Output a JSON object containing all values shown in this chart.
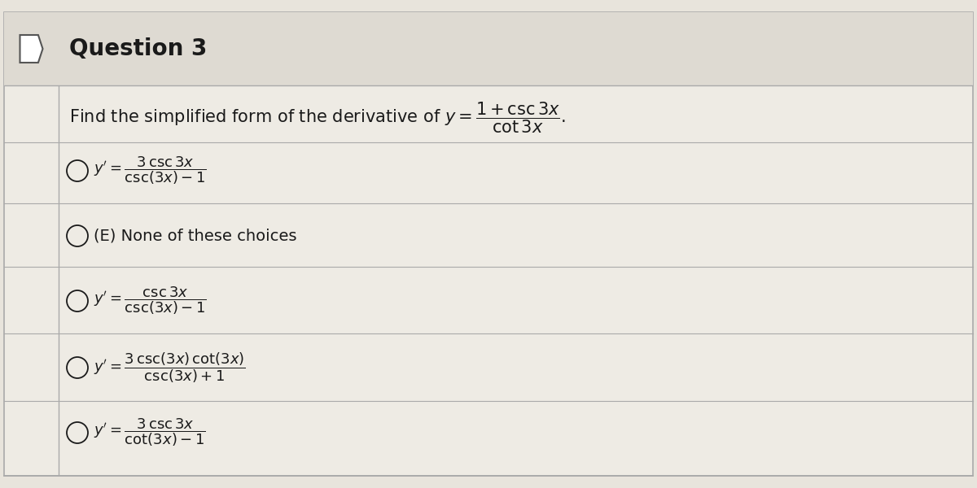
{
  "title": "Question 3",
  "bg_color": "#e8e4dc",
  "header_bg": "#dedad2",
  "content_bg": "#edeae3",
  "border_color": "#aaaaaa",
  "text_color": "#1a1a1a",
  "title_fontsize": 20,
  "question_fontsize": 15,
  "choice_fontsize": 13,
  "choices_math": [
    "y' = \\dfrac{3\\,\\mathrm{csc}\\,3x}{\\mathrm{csc}(3x)-1}",
    null,
    "y' = \\dfrac{\\mathrm{csc}\\,3x}{\\mathrm{csc}(3x)-1}",
    "y' = \\dfrac{3\\,\\mathrm{csc}(3x)\\,\\mathrm{cot}(3x)}{\\mathrm{csc}(3x)+1}",
    "y' = \\dfrac{3\\,\\mathrm{csc}\\,3x}{\\mathrm{cot}(3x)-1}"
  ],
  "choice_none": "(E) None of these choices"
}
